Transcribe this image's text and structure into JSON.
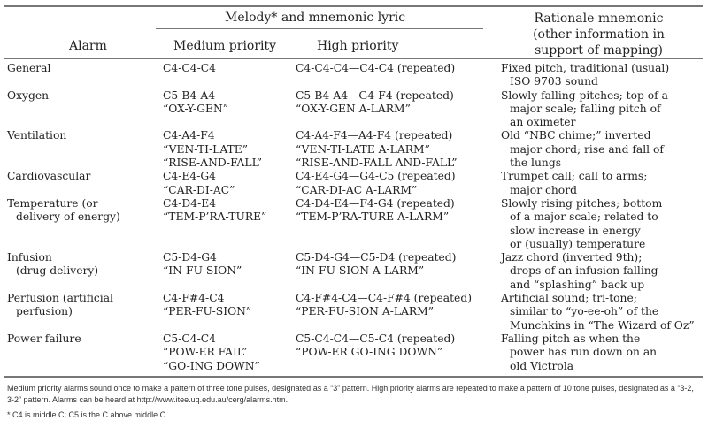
{
  "header": {
    "melody": "Melody* and mnemonic lyric",
    "alarm": "Alarm",
    "medium": "Medium priority",
    "high": "High priority",
    "rationale": [
      "Rationale mnemonic",
      "(other information in",
      "support of mapping)"
    ]
  },
  "rows": [
    {
      "alarm": [
        "General"
      ],
      "medium": [
        "C4-C4-C4"
      ],
      "high": [
        "C4-C4-C4—C4-C4 (repeated)"
      ],
      "rationale": [
        "Fixed pitch, traditional (usual)",
        "ISO 9703 sound"
      ]
    },
    {
      "alarm": [
        "Oxygen"
      ],
      "medium": [
        "C5-B4-A4",
        "“OX-Y-GEN”"
      ],
      "high": [
        "C5-B4-A4—G4-F4 (repeated)",
        "“OX-Y-GEN A-LARM”"
      ],
      "rationale": [
        "Slowly falling pitches; top of a",
        "major scale; falling pitch of",
        "an oximeter"
      ]
    },
    {
      "alarm": [
        "Ventilation"
      ],
      "medium": [
        "C4-A4-F4",
        "“VEN-TI-LATE”",
        "“RISE-AND-FALL”"
      ],
      "high": [
        "C4-A4-F4—A4-F4 (repeated)",
        "“VEN-TI-LATE A-LARM”",
        "“RISE-AND-FALL AND-FALL”"
      ],
      "rationale": [
        "Old “NBC chime;” inverted",
        "major chord; rise and fall of",
        "the lungs"
      ]
    },
    {
      "alarm": [
        "Cardiovascular"
      ],
      "medium": [
        "C4-E4-G4",
        "“CAR-DI-AC”"
      ],
      "high": [
        "C4-E4-G4—G4-C5 (repeated)",
        "“CAR-DI-AC A-LARM”"
      ],
      "rationale": [
        "Trumpet call; call to arms;",
        "major chord"
      ]
    },
    {
      "alarm": [
        "Temperature (or",
        "delivery of energy)"
      ],
      "medium": [
        "C4-D4-E4",
        "“TEM-P’RA-TURE”"
      ],
      "high": [
        "C4-D4-E4—F4-G4 (repeated)",
        "“TEM-P’RA-TURE A-LARM”"
      ],
      "rationale": [
        "Slowly rising pitches; bottom",
        "of a major scale; related to",
        "slow increase in energy",
        "or (usually) temperature"
      ]
    },
    {
      "alarm": [
        "Infusion",
        "(drug delivery)"
      ],
      "medium": [
        "C5-D4-G4",
        "“IN-FU-SION”"
      ],
      "high": [
        "C5-D4-G4—C5-D4 (repeated)",
        "“IN-FU-SION A-LARM”"
      ],
      "rationale": [
        "Jazz chord (inverted 9th);",
        "drops of an infusion falling",
        "and “splashing” back up"
      ]
    },
    {
      "alarm": [
        "Perfusion (artificial",
        "perfusion)"
      ],
      "medium": [
        "C4-F#4-C4",
        "“PER-FU-SION”"
      ],
      "high": [
        "C4-F#4-C4—C4-F#4 (repeated)",
        "“PER-FU-SION A-LARM”"
      ],
      "rationale": [
        "Artificial sound; tri-tone;",
        "similar to “yo-ee-oh” of the",
        "Munchkins in “The Wizard of Oz”"
      ]
    },
    {
      "alarm": [
        "Power failure"
      ],
      "medium": [
        "C5-C4-C4",
        "“POW-ER FAIL”",
        "“GO-ING DOWN”"
      ],
      "high": [
        "C5-C4-C4—C5-C4 (repeated)",
        "“POW-ER GO-ING DOWN”"
      ],
      "rationale": [
        "Falling pitch as when the",
        "power has run down on an",
        "old Victrola"
      ]
    }
  ],
  "footnotes": [
    "Medium priority alarms sound once to make a pattern of three tone pulses, designated as a “3” pattern. High priority alarms are repeated to make a pattern of 10 tone pulses, designated as a “3-2, 3-2” pattern. Alarms can be heard at http://www.itee.uq.edu.au/cerg/alarms.htm.",
    "* C4 is middle C; C5 is the C above middle C."
  ]
}
